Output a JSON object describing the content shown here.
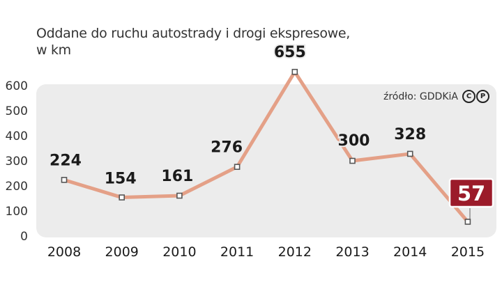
{
  "title_lines": [
    "Oddane do ruchu autostrady i drogi ekspresowe,",
    "w km"
  ],
  "source": "źródło: GDDKiA",
  "license_icons": [
    "copyright-icon",
    "p-icon"
  ],
  "colors": {
    "line": "#e4a087",
    "plot_bg": "#ececec",
    "highlight_bg": "#9b1b2a",
    "marker": "#555555"
  },
  "chart_data": {
    "type": "line",
    "title": "Oddane do ruchu autostrady i drogi ekspresowe, w km",
    "categories": [
      "2008",
      "2009",
      "2010",
      "2011",
      "2012",
      "2013",
      "2014",
      "2015"
    ],
    "values": [
      224,
      154,
      161,
      276,
      655,
      300,
      328,
      57
    ],
    "data_labels": [
      "224",
      "154",
      "161",
      "276",
      "655",
      "300",
      "328",
      "57"
    ],
    "highlighted_index": 7,
    "ylim": [
      0,
      600
    ],
    "yticks": [
      "0",
      "100",
      "200",
      "300",
      "400",
      "500",
      "600"
    ],
    "grid": false,
    "legend": "none"
  }
}
